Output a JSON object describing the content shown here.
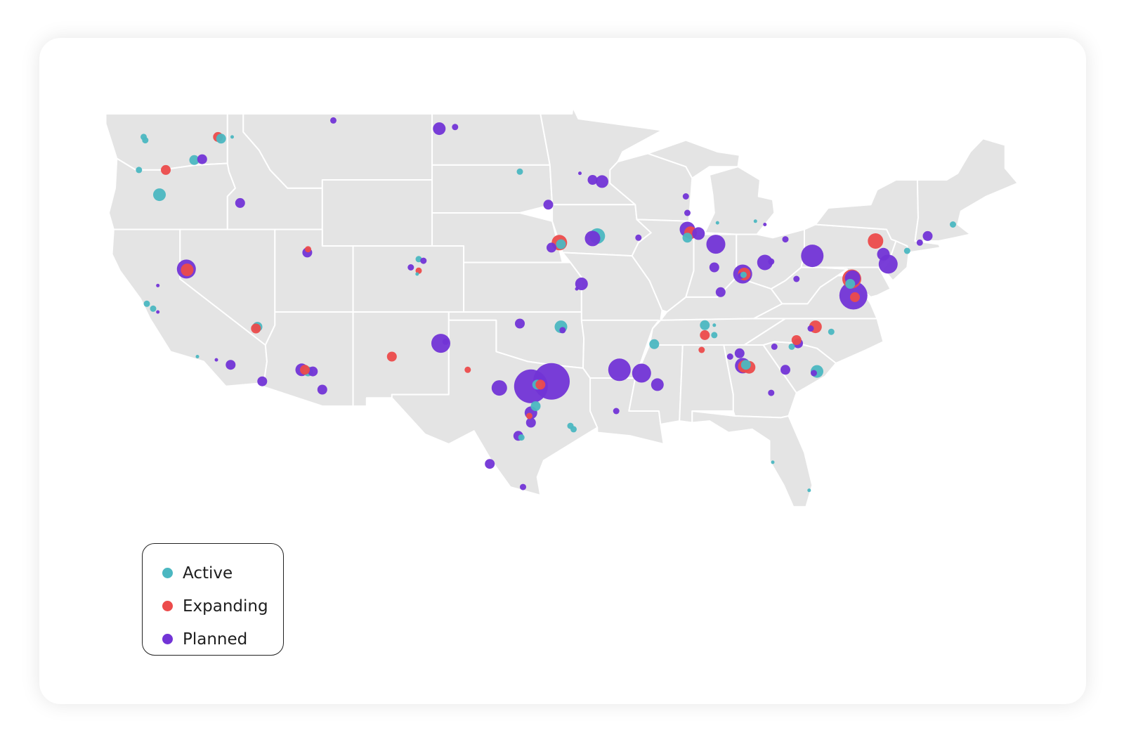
{
  "colors": {
    "active": "#4bb7c1",
    "expanding": "#ec4b4b",
    "planned": "#7234d6"
  },
  "legend": {
    "items": [
      {
        "key": "active",
        "label": "Active"
      },
      {
        "key": "expanding",
        "label": "Expanding"
      },
      {
        "key": "planned",
        "label": "Planned"
      }
    ]
  },
  "sites": [
    {
      "lat": 47.6,
      "lon": -122.3,
      "status": "active",
      "size": 2
    },
    {
      "lat": 47.4,
      "lon": -122.2,
      "status": "active",
      "size": 2
    },
    {
      "lat": 47.6,
      "lon": -117.6,
      "status": "expanding",
      "size": 3
    },
    {
      "lat": 47.5,
      "lon": -117.4,
      "status": "active",
      "size": 3
    },
    {
      "lat": 47.6,
      "lon": -116.7,
      "status": "active",
      "size": 1
    },
    {
      "lat": 46.2,
      "lon": -119.1,
      "status": "active",
      "size": 3
    },
    {
      "lat": 46.25,
      "lon": -118.6,
      "status": "planned",
      "size": 3
    },
    {
      "lat": 45.6,
      "lon": -122.6,
      "status": "active",
      "size": 2
    },
    {
      "lat": 45.6,
      "lon": -120.9,
      "status": "expanding",
      "size": 3
    },
    {
      "lat": 44.1,
      "lon": -121.3,
      "status": "active",
      "size": 4
    },
    {
      "lat": 43.6,
      "lon": -116.2,
      "status": "planned",
      "size": 3
    },
    {
      "lat": 48.6,
      "lon": -110.3,
      "status": "planned",
      "size": 2
    },
    {
      "lat": 48.1,
      "lon": -103.6,
      "status": "planned",
      "size": 4
    },
    {
      "lat": 48.2,
      "lon": -102.6,
      "status": "planned",
      "size": 2
    },
    {
      "lat": 45.5,
      "lon": -98.5,
      "status": "active",
      "size": 2
    },
    {
      "lat": 43.5,
      "lon": -96.7,
      "status": "planned",
      "size": 3
    },
    {
      "lat": 44.9,
      "lon": -93.3,
      "status": "planned",
      "size": 4
    },
    {
      "lat": 45.0,
      "lon": -93.9,
      "status": "planned",
      "size": 3
    },
    {
      "lat": 45.4,
      "lon": -94.7,
      "status": "planned",
      "size": 1
    },
    {
      "lat": 44.0,
      "lon": -88.0,
      "status": "planned",
      "size": 2
    },
    {
      "lat": 43.0,
      "lon": -87.9,
      "status": "planned",
      "size": 2
    },
    {
      "lat": 42.0,
      "lon": -87.9,
      "status": "planned",
      "size": 5
    },
    {
      "lat": 41.8,
      "lon": -87.7,
      "status": "expanding",
      "size": 4
    },
    {
      "lat": 41.75,
      "lon": -87.2,
      "status": "planned",
      "size": 4
    },
    {
      "lat": 41.5,
      "lon": -87.9,
      "status": "active",
      "size": 3
    },
    {
      "lat": 42.4,
      "lon": -86.0,
      "status": "active",
      "size": 1
    },
    {
      "lat": 42.3,
      "lon": -83.0,
      "status": "planned",
      "size": 1
    },
    {
      "lat": 42.5,
      "lon": -83.6,
      "status": "active",
      "size": 1
    },
    {
      "lat": 41.6,
      "lon": -93.6,
      "status": "active",
      "size": 5
    },
    {
      "lat": 41.45,
      "lon": -93.9,
      "status": "planned",
      "size": 5
    },
    {
      "lat": 41.5,
      "lon": -91.0,
      "status": "planned",
      "size": 2
    },
    {
      "lat": 41.2,
      "lon": -96.0,
      "status": "expanding",
      "size": 5
    },
    {
      "lat": 41.1,
      "lon": -95.9,
      "status": "active",
      "size": 3
    },
    {
      "lat": 40.9,
      "lon": -96.5,
      "status": "planned",
      "size": 3
    },
    {
      "lat": 41.1,
      "lon": -86.1,
      "status": "planned",
      "size": 6
    },
    {
      "lat": 40.0,
      "lon": -83.0,
      "status": "planned",
      "size": 5
    },
    {
      "lat": 40.05,
      "lon": -82.6,
      "status": "planned",
      "size": 2
    },
    {
      "lat": 40.4,
      "lon": -80.0,
      "status": "planned",
      "size": 7
    },
    {
      "lat": 39.7,
      "lon": -86.2,
      "status": "planned",
      "size": 3
    },
    {
      "lat": 39.2,
      "lon": -84.5,
      "status": "planned",
      "size": 2
    },
    {
      "lat": 39.3,
      "lon": -84.4,
      "status": "planned",
      "size": 6
    },
    {
      "lat": 39.3,
      "lon": -84.3,
      "status": "expanding",
      "size": 4
    },
    {
      "lat": 39.25,
      "lon": -84.35,
      "status": "active",
      "size": 2
    },
    {
      "lat": 38.2,
      "lon": -85.8,
      "status": "planned",
      "size": 3
    },
    {
      "lat": 41.4,
      "lon": -81.7,
      "status": "planned",
      "size": 2
    },
    {
      "lat": 39.0,
      "lon": -81.0,
      "status": "planned",
      "size": 2
    },
    {
      "lat": 41.3,
      "lon": -76.0,
      "status": "expanding",
      "size": 5
    },
    {
      "lat": 40.5,
      "lon": -75.5,
      "status": "planned",
      "size": 4
    },
    {
      "lat": 39.9,
      "lon": -75.2,
      "status": "planned",
      "size": 6
    },
    {
      "lat": 40.7,
      "lon": -74.0,
      "status": "active",
      "size": 2
    },
    {
      "lat": 41.2,
      "lon": -73.2,
      "status": "planned",
      "size": 2
    },
    {
      "lat": 41.6,
      "lon": -72.7,
      "status": "planned",
      "size": 3
    },
    {
      "lat": 42.3,
      "lon": -71.1,
      "status": "active",
      "size": 2
    },
    {
      "lat": 39.0,
      "lon": -77.5,
      "status": "expanding",
      "size": 6
    },
    {
      "lat": 39.05,
      "lon": -77.45,
      "status": "planned",
      "size": 5
    },
    {
      "lat": 38.7,
      "lon": -77.6,
      "status": "active",
      "size": 3
    },
    {
      "lat": 38.0,
      "lon": -77.4,
      "status": "planned",
      "size": 8
    },
    {
      "lat": 37.9,
      "lon": -77.3,
      "status": "expanding",
      "size": 3
    },
    {
      "lat": 36.1,
      "lon": -79.8,
      "status": "expanding",
      "size": 4
    },
    {
      "lat": 35.8,
      "lon": -78.8,
      "status": "active",
      "size": 2
    },
    {
      "lat": 36.0,
      "lon": -80.1,
      "status": "planned",
      "size": 2
    },
    {
      "lat": 35.1,
      "lon": -80.9,
      "status": "planned",
      "size": 3
    },
    {
      "lat": 35.3,
      "lon": -81.0,
      "status": "expanding",
      "size": 3
    },
    {
      "lat": 34.9,
      "lon": -81.3,
      "status": "active",
      "size": 2
    },
    {
      "lat": 34.9,
      "lon": -82.4,
      "status": "planned",
      "size": 2
    },
    {
      "lat": 33.5,
      "lon": -81.7,
      "status": "planned",
      "size": 3
    },
    {
      "lat": 33.4,
      "lon": -79.7,
      "status": "active",
      "size": 4
    },
    {
      "lat": 33.3,
      "lon": -79.9,
      "status": "planned",
      "size": 2
    },
    {
      "lat": 33.75,
      "lon": -84.4,
      "status": "planned",
      "size": 5
    },
    {
      "lat": 33.7,
      "lon": -84.3,
      "status": "expanding",
      "size": 4
    },
    {
      "lat": 33.65,
      "lon": -84.0,
      "status": "expanding",
      "size": 4
    },
    {
      "lat": 33.8,
      "lon": -84.2,
      "status": "active",
      "size": 3
    },
    {
      "lat": 34.3,
      "lon": -85.2,
      "status": "planned",
      "size": 2
    },
    {
      "lat": 34.5,
      "lon": -84.6,
      "status": "planned",
      "size": 3
    },
    {
      "lat": 32.1,
      "lon": -82.6,
      "status": "planned",
      "size": 2
    },
    {
      "lat": 35.6,
      "lon": -86.8,
      "status": "expanding",
      "size": 3
    },
    {
      "lat": 35.6,
      "lon": -86.2,
      "status": "active",
      "size": 2
    },
    {
      "lat": 36.2,
      "lon": -86.8,
      "status": "active",
      "size": 3
    },
    {
      "lat": 36.2,
      "lon": -86.2,
      "status": "active",
      "size": 1
    },
    {
      "lat": 35.05,
      "lon": -90.0,
      "status": "active",
      "size": 3
    },
    {
      "lat": 34.7,
      "lon": -87.0,
      "status": "expanding",
      "size": 2
    },
    {
      "lat": 33.5,
      "lon": -92.2,
      "status": "planned",
      "size": 7
    },
    {
      "lat": 33.3,
      "lon": -90.8,
      "status": "planned",
      "size": 6
    },
    {
      "lat": 32.6,
      "lon": -89.8,
      "status": "planned",
      "size": 4
    },
    {
      "lat": 31.0,
      "lon": -92.4,
      "status": "planned",
      "size": 2
    },
    {
      "lat": 36.1,
      "lon": -95.9,
      "status": "active",
      "size": 4
    },
    {
      "lat": 35.9,
      "lon": -95.8,
      "status": "planned",
      "size": 2
    },
    {
      "lat": 36.3,
      "lon": -98.5,
      "status": "planned",
      "size": 3
    },
    {
      "lat": 35.1,
      "lon": -103.5,
      "status": "planned",
      "size": 6
    },
    {
      "lat": 35.2,
      "lon": -103.2,
      "status": "planned",
      "size": 2
    },
    {
      "lat": 34.3,
      "lon": -106.6,
      "status": "expanding",
      "size": 3
    },
    {
      "lat": 33.5,
      "lon": -101.8,
      "status": "expanding",
      "size": 2
    },
    {
      "lat": 32.8,
      "lon": -96.5,
      "status": "planned",
      "size": 10
    },
    {
      "lat": 32.6,
      "lon": -97.4,
      "status": "active",
      "size": 3
    },
    {
      "lat": 32.5,
      "lon": -97.8,
      "status": "planned",
      "size": 9
    },
    {
      "lat": 32.6,
      "lon": -97.2,
      "status": "expanding",
      "size": 3
    },
    {
      "lat": 32.4,
      "lon": -99.8,
      "status": "planned",
      "size": 5
    },
    {
      "lat": 31.3,
      "lon": -97.5,
      "status": "active",
      "size": 3
    },
    {
      "lat": 30.9,
      "lon": -97.8,
      "status": "planned",
      "size": 4
    },
    {
      "lat": 30.7,
      "lon": -97.9,
      "status": "expanding",
      "size": 2
    },
    {
      "lat": 30.3,
      "lon": -97.8,
      "status": "planned",
      "size": 3
    },
    {
      "lat": 30.1,
      "lon": -95.3,
      "status": "active",
      "size": 2
    },
    {
      "lat": 29.9,
      "lon": -95.1,
      "status": "active",
      "size": 2
    },
    {
      "lat": 29.5,
      "lon": -98.6,
      "status": "planned",
      "size": 3
    },
    {
      "lat": 29.4,
      "lon": -98.4,
      "status": "active",
      "size": 2
    },
    {
      "lat": 27.8,
      "lon": -100.4,
      "status": "planned",
      "size": 3
    },
    {
      "lat": 26.4,
      "lon": -98.3,
      "status": "planned",
      "size": 2
    },
    {
      "lat": 33.5,
      "lon": -112.3,
      "status": "planned",
      "size": 4
    },
    {
      "lat": 33.4,
      "lon": -111.9,
      "status": "active",
      "size": 3
    },
    {
      "lat": 33.4,
      "lon": -111.6,
      "status": "planned",
      "size": 3
    },
    {
      "lat": 33.5,
      "lon": -112.1,
      "status": "expanding",
      "size": 3
    },
    {
      "lat": 32.3,
      "lon": -111.0,
      "status": "planned",
      "size": 3
    },
    {
      "lat": 32.8,
      "lon": -114.8,
      "status": "planned",
      "size": 3
    },
    {
      "lat": 36.1,
      "lon": -115.1,
      "status": "active",
      "size": 3
    },
    {
      "lat": 36.0,
      "lon": -115.2,
      "status": "expanding",
      "size": 3
    },
    {
      "lat": 39.6,
      "lon": -119.6,
      "status": "planned",
      "size": 6
    },
    {
      "lat": 39.55,
      "lon": -119.55,
      "status": "expanding",
      "size": 4
    },
    {
      "lat": 40.8,
      "lon": -111.9,
      "status": "expanding",
      "size": 2
    },
    {
      "lat": 40.6,
      "lon": -111.95,
      "status": "planned",
      "size": 3
    },
    {
      "lat": 40.2,
      "lon": -104.9,
      "status": "active",
      "size": 2
    },
    {
      "lat": 40.1,
      "lon": -104.6,
      "status": "planned",
      "size": 2
    },
    {
      "lat": 39.7,
      "lon": -105.4,
      "status": "planned",
      "size": 2
    },
    {
      "lat": 39.5,
      "lon": -104.9,
      "status": "expanding",
      "size": 2
    },
    {
      "lat": 39.3,
      "lon": -105.0,
      "status": "active",
      "size": 1
    },
    {
      "lat": 38.7,
      "lon": -94.6,
      "status": "planned",
      "size": 4
    },
    {
      "lat": 38.4,
      "lon": -94.9,
      "status": "planned",
      "size": 1
    },
    {
      "lat": 38.6,
      "lon": -121.4,
      "status": "planned",
      "size": 1
    },
    {
      "lat": 37.5,
      "lon": -122.1,
      "status": "active",
      "size": 2
    },
    {
      "lat": 37.2,
      "lon": -121.7,
      "status": "active",
      "size": 2
    },
    {
      "lat": 37.0,
      "lon": -121.4,
      "status": "planned",
      "size": 1
    },
    {
      "lat": 34.3,
      "lon": -118.9,
      "status": "active",
      "size": 1
    },
    {
      "lat": 34.1,
      "lon": -117.7,
      "status": "planned",
      "size": 1
    },
    {
      "lat": 33.8,
      "lon": -116.8,
      "status": "planned",
      "size": 3
    },
    {
      "lat": 27.9,
      "lon": -82.5,
      "status": "active",
      "size": 1
    },
    {
      "lat": 26.2,
      "lon": -80.2,
      "status": "active",
      "size": 1
    }
  ]
}
